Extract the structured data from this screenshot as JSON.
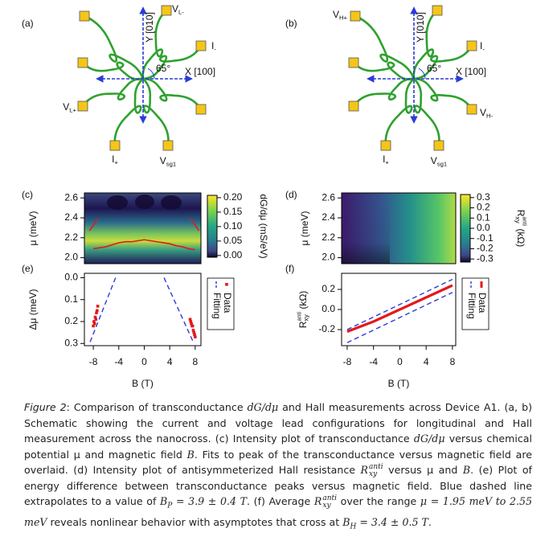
{
  "figure": {
    "schematics": [
      {
        "panel_label": "(a)",
        "axis_y": "Y [010]",
        "axis_x": "X [100]",
        "angle": "65°",
        "leads": [
          {
            "base": "V",
            "sub": "L-"
          },
          {
            "base": "I",
            "sub": "-"
          },
          {
            "base": "V",
            "sub": "L+"
          },
          {
            "base": "I",
            "sub": "+"
          },
          {
            "base": "V",
            "sub": "sg1"
          }
        ]
      },
      {
        "panel_label": "(b)",
        "axis_y": "Y [010]",
        "axis_x": "X [100]",
        "angle": "65°",
        "leads": [
          {
            "base": "V",
            "sub": "H+"
          },
          {
            "base": "I",
            "sub": "-"
          },
          {
            "base": "V",
            "sub": "H-"
          },
          {
            "base": "I",
            "sub": "+"
          },
          {
            "base": "V",
            "sub": "sg1"
          }
        ]
      }
    ]
  },
  "chart_data": [
    {
      "type": "heatmap",
      "panel_label": "(c)",
      "ylabel": "μ (meV)",
      "xlim": [
        -9.4,
        8.9
      ],
      "ylim": [
        1.94,
        2.65
      ],
      "yticks": [
        {
          "value": 2,
          "label": "2.0"
        },
        2.2,
        2.4,
        2.6
      ],
      "colorbar": {
        "label": "dG/dμ (mS/eV)",
        "zlim": [
          -0.006,
          0.208
        ],
        "zticks": [
          {
            "value": 0.2,
            "label": "0.20"
          },
          0.15,
          {
            "value": 0.1,
            "label": "0.10"
          },
          0.05,
          {
            "value": 0,
            "label": "0.00"
          }
        ]
      },
      "series": [
        {
          "color": "#e3191c",
          "x": [
            -8,
            -7,
            -6,
            -5,
            -4,
            -3,
            -2,
            -1,
            0,
            1,
            2,
            3,
            4,
            5,
            6,
            7,
            8
          ],
          "values": [
            2.09,
            2.1,
            2.11,
            2.13,
            2.15,
            2.16,
            2.16,
            2.17,
            2.18,
            2.17,
            2.16,
            2.15,
            2.14,
            2.12,
            2.11,
            2.09,
            2.08
          ]
        },
        {
          "color": "#e3191c",
          "x": [
            -8.6,
            -7.3,
            null,
            7.3,
            8.6
          ],
          "values": [
            2.27,
            2.39,
            null,
            2.39,
            2.27
          ]
        }
      ]
    },
    {
      "type": "heatmap",
      "panel_label": "(d)",
      "ylabel": "μ (meV)",
      "xlim": [
        -8.85,
        8.5
      ],
      "ylim": [
        1.94,
        2.65
      ],
      "yticks": [
        {
          "value": 2,
          "label": "2.0"
        },
        2.2,
        2.4,
        2.6
      ],
      "colorbar": {
        "label": {
          "base": "R",
          "sub": "xy",
          "sup": "anti",
          "rest": " (kΩ)"
        },
        "zlim": [
          -0.33,
          0.33
        ],
        "zticks": [
          0.3,
          0.2,
          0.1,
          {
            "value": 0,
            "label": "0.0"
          },
          -0.1,
          -0.2,
          -0.3
        ]
      },
      "series": []
    },
    {
      "type": "line",
      "panel_label": "(e)",
      "ylabel": "Δμ (meV)",
      "xlabel": "B (T)",
      "xlim": [
        -9.4,
        8.9
      ],
      "ylim": [
        -0.02,
        0.31
      ],
      "y_inverted": true,
      "xticks": [
        -8,
        -4,
        0,
        4,
        8
      ],
      "yticks": [
        {
          "value": 0,
          "label": "0.0"
        },
        0.1,
        0.2,
        0.3
      ],
      "series": [
        {
          "name": "Data",
          "color": "#e3191c",
          "mode": "markers",
          "x": [
            -8.0,
            -7.9,
            -7.8,
            -7.7,
            -7.6,
            -7.5,
            -7.4,
            -7.3,
            7.2,
            7.3,
            7.4,
            7.5,
            7.6,
            7.7,
            7.8,
            7.9,
            8.0
          ],
          "values": [
            0.22,
            0.2,
            0.21,
            0.18,
            0.19,
            0.16,
            0.15,
            0.13,
            0.19,
            0.2,
            0.21,
            0.22,
            0.22,
            0.24,
            0.25,
            0.26,
            0.27
          ]
        },
        {
          "name": "Fitting",
          "color": "#2b3bd9",
          "mode": "dashed",
          "x": [
            -4.5,
            -8.6,
            null,
            3.1,
            7.8
          ],
          "values": [
            0,
            0.3,
            null,
            0,
            0.3
          ]
        }
      ]
    },
    {
      "type": "line",
      "panel_label": "(f)",
      "ylabel": {
        "base": "R",
        "sub": "xy",
        "sup": "anti",
        "rest": " (kΩ)"
      },
      "xlabel": "B (T)",
      "xlim": [
        -8.85,
        8.5
      ],
      "ylim": [
        -0.36,
        0.36
      ],
      "xticks": [
        -8,
        -4,
        0,
        4,
        8
      ],
      "yticks": [
        0.2,
        {
          "value": 0,
          "label": "0.0"
        },
        -0.2
      ],
      "series": [
        {
          "name": "Data",
          "color": "#e3191c",
          "mode": "thick",
          "x": [
            -8,
            -6,
            -4,
            -2,
            0,
            2,
            4,
            6,
            8
          ],
          "values": [
            -0.22,
            -0.17,
            -0.12,
            -0.06,
            0,
            0.06,
            0.12,
            0.18,
            0.24
          ]
        },
        {
          "name": "Fitting",
          "color": "#2b3bd9",
          "mode": "dashed",
          "x": [
            -8,
            8,
            null,
            -8,
            8
          ],
          "values": [
            -0.2,
            0.3,
            null,
            -0.33,
            0.17
          ]
        }
      ]
    }
  ],
  "caption": [
    {
      "text": "Figure 2",
      "style": "italic"
    },
    {
      "text": ": Comparison of transconductance "
    },
    {
      "text": "dG/dμ",
      "style": "math"
    },
    {
      "text": " and Hall measurements across Device A1. (a, b) Schematic showing the current and voltage lead configurations for longitudinal and Hall measurement across the nanocross. (c) Intensity plot of transconductance "
    },
    {
      "text": "dG/dμ",
      "style": "math"
    },
    {
      "text": " versus chemical potential μ and magnetic field "
    },
    {
      "text": "B",
      "style": "math"
    },
    {
      "text": ". Fits to peak of the transconductance versus magnetic field are overlaid. (d) Intensity plot of antisymmeterized Hall resistance "
    },
    {
      "base": "R",
      "sub": "xy",
      "sup": "anti",
      "style": "math"
    },
    {
      "text": " versus μ and "
    },
    {
      "text": "B",
      "style": "math"
    },
    {
      "text": ". (e) Plot of energy difference between transconductance peaks versus magnetic field. Blue dashed line extrapolates to a value of "
    },
    {
      "base": "B",
      "sub": "P",
      "style": "math"
    },
    {
      "text": " = 3.9 ± 0.4 T",
      "style": "math"
    },
    {
      "text": ". (f) Average "
    },
    {
      "base": "R",
      "sub": "xy",
      "sup": "anti",
      "style": "math"
    },
    {
      "text": " over the range "
    },
    {
      "text": "μ = 1.95 meV to 2.55 meV",
      "style": "math"
    },
    {
      "text": " reveals nonlinear behavior with asymptotes that cross at "
    },
    {
      "base": "B",
      "sub": "H",
      "style": "math"
    },
    {
      "text": " = 3.4 ± 0.5 T",
      "style": "math"
    },
    {
      "text": "."
    }
  ]
}
